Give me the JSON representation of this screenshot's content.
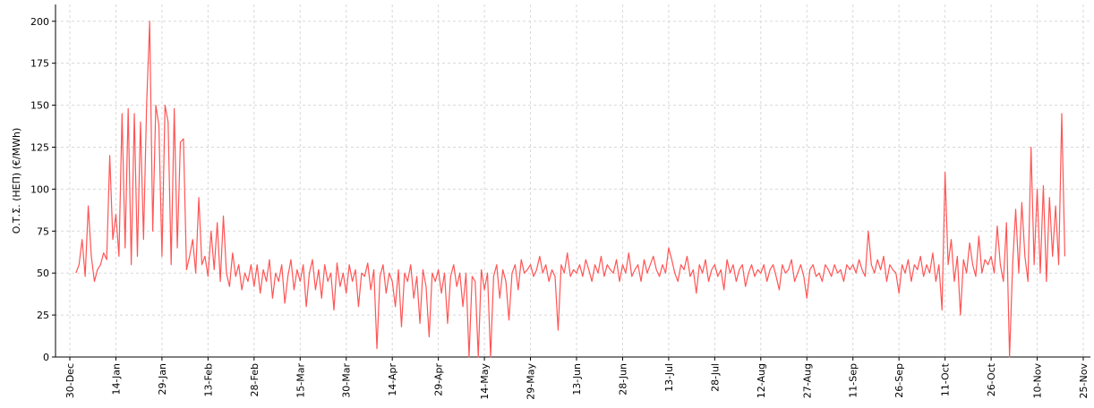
{
  "chart_data": {
    "type": "line",
    "y_label": "Ο.Τ.Σ. (ΗΕΠ) (€/MWh)",
    "categories": [
      "30-Dec",
      null,
      null,
      null,
      null,
      null,
      null,
      null,
      null,
      null,
      null,
      null,
      null,
      null,
      null,
      "14-Jan",
      null,
      null,
      null,
      null,
      null,
      null,
      null,
      null,
      null,
      null,
      null,
      null,
      null,
      null,
      "29-Jan",
      null,
      null,
      null,
      null,
      null,
      null,
      null,
      null,
      null,
      null,
      null,
      null,
      null,
      null,
      "13-Feb",
      null,
      null,
      null,
      null,
      null,
      null,
      null,
      null,
      null,
      null,
      null,
      null,
      null,
      null,
      "28-Feb",
      null,
      null,
      null,
      null,
      null,
      null,
      null,
      null,
      null,
      null,
      null,
      null,
      null,
      null,
      "15-Mar",
      null,
      null,
      null,
      null,
      null,
      null,
      null,
      null,
      null,
      null,
      null,
      null,
      null,
      null,
      "30-Mar",
      null,
      null,
      null,
      null,
      null,
      null,
      null,
      null,
      null,
      null,
      null,
      null,
      null,
      null,
      "14-Apr",
      null,
      null,
      null,
      null,
      null,
      null,
      null,
      null,
      null,
      null,
      null,
      null,
      null,
      null,
      "29-Apr",
      null,
      null,
      null,
      null,
      null,
      null,
      null,
      null,
      null,
      null,
      null,
      null,
      null,
      null,
      "14-May",
      null,
      null,
      null,
      null,
      null,
      null,
      null,
      null,
      null,
      null,
      null,
      null,
      null,
      null,
      "29-May",
      null,
      null,
      null,
      null,
      null,
      null,
      null,
      null,
      null,
      null,
      null,
      null,
      null,
      null,
      "13-Jun",
      null,
      null,
      null,
      null,
      null,
      null,
      null,
      null,
      null,
      null,
      null,
      null,
      null,
      null,
      "28-Jun",
      null,
      null,
      null,
      null,
      null,
      null,
      null,
      null,
      null,
      null,
      null,
      null,
      null,
      null,
      "13-Jul",
      null,
      null,
      null,
      null,
      null,
      null,
      null,
      null,
      null,
      null,
      null,
      null,
      null,
      null,
      "28-Jul",
      null,
      null,
      null,
      null,
      null,
      null,
      null,
      null,
      null,
      null,
      null,
      null,
      null,
      null,
      "12-Aug",
      null,
      null,
      null,
      null,
      null,
      null,
      null,
      null,
      null,
      null,
      null,
      null,
      null,
      null,
      "27-Aug",
      null,
      null,
      null,
      null,
      null,
      null,
      null,
      null,
      null,
      null,
      null,
      null,
      null,
      null,
      "11-Sep",
      null,
      null,
      null,
      null,
      null,
      null,
      null,
      null,
      null,
      null,
      null,
      null,
      null,
      null,
      "26-Sep",
      null,
      null,
      null,
      null,
      null,
      null,
      null,
      null,
      null,
      null,
      null,
      null,
      null,
      null,
      "11-Oct",
      null,
      null,
      null,
      null,
      null,
      null,
      null,
      null,
      null,
      null,
      null,
      null,
      null,
      null,
      "26-Oct",
      null,
      null,
      null,
      null,
      null,
      null,
      null,
      null,
      null,
      null,
      null,
      null,
      null,
      null,
      "10-Nov",
      null,
      null,
      null,
      null,
      null,
      null,
      null,
      null,
      null,
      null,
      null,
      null,
      null,
      null,
      "25-Nov"
    ],
    "values": [
      null,
      null,
      50,
      55,
      70,
      48,
      90,
      60,
      45,
      52,
      55,
      62,
      58,
      120,
      70,
      85,
      60,
      145,
      65,
      148,
      55,
      145,
      60,
      140,
      70,
      150,
      200,
      75,
      150,
      138,
      60,
      150,
      140,
      55,
      148,
      65,
      128,
      130,
      52,
      60,
      70,
      50,
      95,
      55,
      60,
      48,
      75,
      52,
      80,
      45,
      84,
      50,
      42,
      62,
      48,
      55,
      40,
      50,
      45,
      55,
      42,
      55,
      38,
      52,
      45,
      58,
      35,
      50,
      45,
      55,
      32,
      48,
      58,
      40,
      52,
      45,
      55,
      30,
      50,
      58,
      40,
      52,
      35,
      55,
      45,
      50,
      28,
      56,
      42,
      50,
      38,
      55,
      45,
      52,
      30,
      50,
      48,
      56,
      40,
      52,
      5,
      48,
      55,
      38,
      50,
      45,
      30,
      52,
      18,
      50,
      45,
      55,
      35,
      48,
      20,
      52,
      42,
      12,
      50,
      45,
      52,
      38,
      50,
      20,
      48,
      55,
      42,
      50,
      30,
      50,
      0,
      48,
      45,
      0,
      52,
      40,
      50,
      0,
      48,
      55,
      35,
      52,
      45,
      22,
      50,
      55,
      40,
      58,
      50,
      52,
      55,
      48,
      52,
      60,
      50,
      55,
      45,
      52,
      48,
      16,
      55,
      50,
      62,
      48,
      52,
      50,
      55,
      48,
      58,
      52,
      45,
      55,
      50,
      60,
      48,
      55,
      52,
      50,
      58,
      45,
      55,
      50,
      62,
      48,
      52,
      55,
      45,
      58,
      50,
      55,
      60,
      52,
      48,
      55,
      50,
      65,
      58,
      50,
      45,
      55,
      52,
      60,
      48,
      52,
      38,
      55,
      50,
      58,
      45,
      52,
      55,
      48,
      52,
      40,
      58,
      50,
      55,
      45,
      52,
      55,
      42,
      50,
      55,
      48,
      52,
      50,
      55,
      45,
      52,
      55,
      48,
      40,
      55,
      50,
      52,
      58,
      45,
      50,
      55,
      48,
      35,
      52,
      55,
      48,
      50,
      45,
      55,
      52,
      48,
      55,
      50,
      52,
      45,
      55,
      52,
      55,
      50,
      58,
      52,
      48,
      75,
      55,
      50,
      58,
      52,
      60,
      45,
      55,
      52,
      50,
      38,
      55,
      50,
      58,
      45,
      55,
      52,
      60,
      48,
      55,
      50,
      62,
      45,
      55,
      28,
      110,
      55,
      70,
      45,
      60,
      25,
      58,
      50,
      68,
      55,
      48,
      72,
      50,
      58,
      55,
      60,
      50,
      78,
      55,
      45,
      80,
      0,
      55,
      88,
      50,
      92,
      60,
      45,
      125,
      55,
      100,
      50,
      102,
      45,
      95,
      60,
      90,
      55,
      145,
      60,
      null,
      null,
      null,
      null,
      null,
      null
    ],
    "color": "#ff5555",
    "ylim": [
      0,
      210
    ],
    "yticks": [
      0,
      25,
      50,
      75,
      100,
      125,
      150,
      175,
      200
    ],
    "grid": true
  }
}
